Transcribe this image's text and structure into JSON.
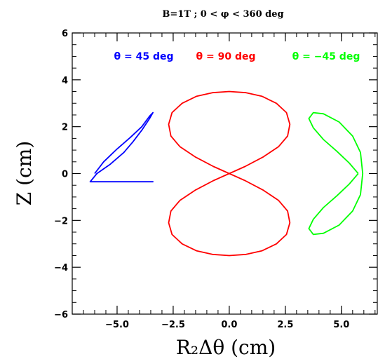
{
  "chart_data": {
    "type": "line",
    "title": "B=1T ; 0 < φ < 360 deg",
    "xlabel": "R₂Δθ (cm)",
    "ylabel": "Z (cm)",
    "xlim": [
      -7.0,
      6.6
    ],
    "ylim": [
      -6,
      6
    ],
    "xticks": [
      -5.0,
      -2.5,
      0.0,
      2.5,
      5.0
    ],
    "xtick_labels": [
      "−5.0",
      "−2.5",
      "0.0",
      "2.5",
      "5.0"
    ],
    "yticks": [
      -6,
      -4,
      -2,
      0,
      2,
      4,
      6
    ],
    "ytick_labels": [
      "−6",
      "−4",
      "−2",
      "0",
      "2",
      "4",
      "6"
    ],
    "grid": false,
    "legend": "top, inside plot",
    "series": [
      {
        "name": "θ = 45 deg",
        "color": "#0000ff",
        "x": [
          -6.0,
          -5.6,
          -5.0,
          -4.4,
          -3.9,
          -3.55,
          -3.4,
          -3.55,
          -3.9,
          -4.3,
          -4.7,
          -5.3,
          -5.9,
          -6.2,
          -6.2,
          -5.9,
          -5.3,
          -4.7,
          -4.3,
          -3.9,
          -3.55,
          -3.4,
          -3.55,
          -3.9,
          -4.4,
          -5.0,
          -5.6,
          -6.0
        ],
        "y": [
          0.0,
          0.5,
          1.05,
          1.55,
          2.0,
          2.45,
          2.6,
          2.35,
          1.85,
          1.35,
          0.9,
          0.4,
          0.0,
          -0.35,
          -0.35,
          -0.35,
          -0.35,
          -0.35,
          -0.35,
          -0.35,
          -0.35,
          -0.35,
          -0.35,
          -0.35,
          -0.35,
          -0.35,
          -0.35,
          -0.35
        ]
      },
      {
        "name": "θ = 90 deg",
        "color": "#ff0000",
        "x": [
          0.0,
          0.7,
          1.5,
          2.2,
          2.6,
          2.7,
          2.55,
          2.1,
          1.45,
          0.75,
          0.0,
          -0.75,
          -1.45,
          -2.1,
          -2.55,
          -2.7,
          -2.6,
          -2.2,
          -1.5,
          -0.7,
          0.0,
          0.7,
          1.5,
          2.2,
          2.6,
          2.7,
          2.55,
          2.1,
          1.45,
          0.75,
          0.0,
          -0.75,
          -1.45,
          -2.1,
          -2.55,
          -2.7,
          -2.6,
          -2.2,
          -1.5,
          -0.7,
          0.0
        ],
        "y": [
          0.0,
          0.3,
          0.7,
          1.15,
          1.6,
          2.1,
          2.6,
          3.0,
          3.3,
          3.45,
          3.5,
          3.45,
          3.3,
          3.0,
          2.6,
          2.1,
          1.6,
          1.15,
          0.7,
          0.3,
          0.0,
          -0.3,
          -0.7,
          -1.15,
          -1.6,
          -2.1,
          -2.6,
          -3.0,
          -3.3,
          -3.45,
          -3.5,
          -3.45,
          -3.3,
          -3.0,
          -2.6,
          -2.1,
          -1.6,
          -1.15,
          -0.7,
          -0.3,
          0.0
        ]
      },
      {
        "name": "θ = −45 deg",
        "color": "#00ff00",
        "x": [
          5.75,
          5.35,
          4.8,
          4.2,
          3.75,
          3.55,
          3.75,
          4.2,
          4.9,
          5.5,
          5.85,
          5.95,
          5.85,
          5.5,
          4.9,
          4.2,
          3.75,
          3.55,
          3.75,
          4.2,
          4.8,
          5.35,
          5.75
        ],
        "y": [
          0.0,
          0.45,
          0.95,
          1.45,
          1.95,
          2.35,
          2.6,
          2.55,
          2.2,
          1.6,
          0.9,
          0.0,
          -0.9,
          -1.6,
          -2.2,
          -2.55,
          -2.6,
          -2.35,
          -1.95,
          -1.45,
          -0.95,
          -0.45,
          0.0
        ]
      }
    ]
  }
}
